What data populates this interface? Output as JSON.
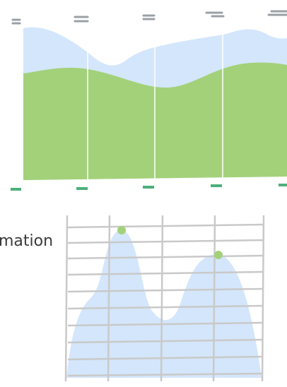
{
  "caption": "mation"
}
